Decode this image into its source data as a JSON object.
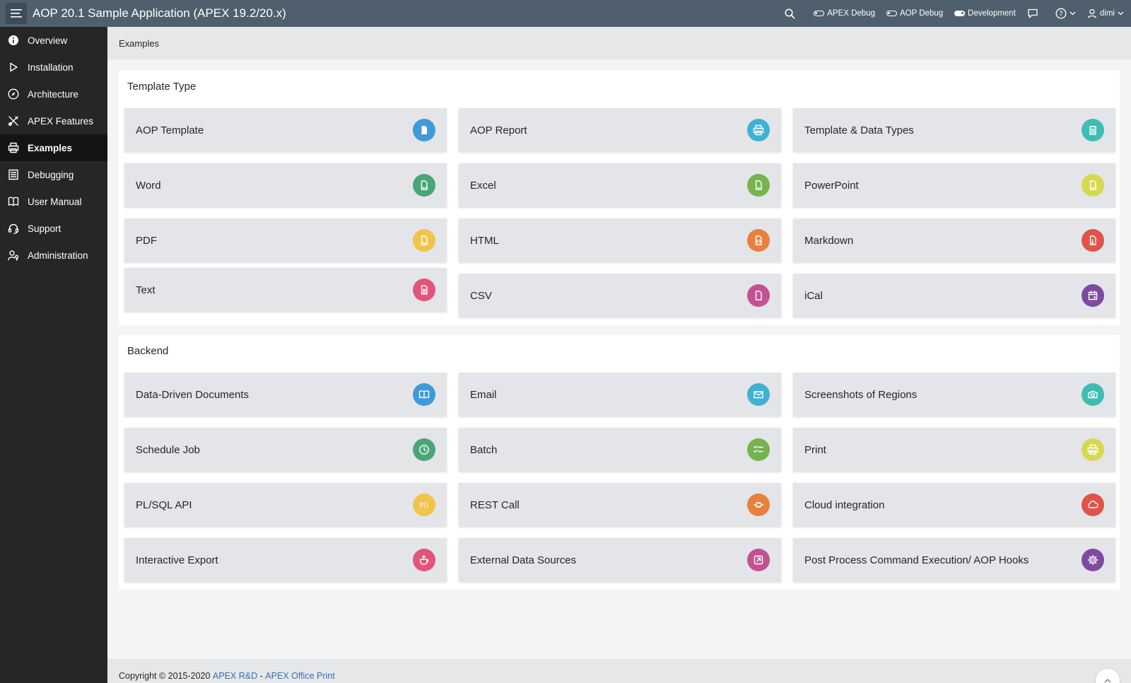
{
  "header": {
    "title": "AOP 20.1 Sample Application (APEX 19.2/20.x)",
    "apex_debug": "APEX Debug",
    "aop_debug": "AOP Debug",
    "development": "Development",
    "user": "dimi"
  },
  "sidebar": {
    "items": [
      {
        "label": "Overview",
        "icon": "info-icon"
      },
      {
        "label": "Installation",
        "icon": "play-icon"
      },
      {
        "label": "Architecture",
        "icon": "compass-icon"
      },
      {
        "label": "APEX Features",
        "icon": "tools-icon"
      },
      {
        "label": "Examples",
        "icon": "printer-icon",
        "active": true
      },
      {
        "label": "Debugging",
        "icon": "list-icon"
      },
      {
        "label": "User Manual",
        "icon": "book-icon"
      },
      {
        "label": "Support",
        "icon": "headset-icon"
      },
      {
        "label": "Administration",
        "icon": "user-key-icon"
      }
    ]
  },
  "breadcrumb": "Examples",
  "template_region": {
    "title": "Template Type",
    "cards": [
      {
        "label": "AOP Template",
        "icon": "file-icon",
        "color": "#3e9ad8"
      },
      {
        "label": "AOP Report",
        "icon": "printer-icon",
        "color": "#40b1d2"
      },
      {
        "label": "Template & Data Types",
        "icon": "clipboard-icon",
        "color": "#3fbdb3"
      },
      {
        "label": "Word",
        "icon": "doc-file-icon",
        "color": "#4aa678"
      },
      {
        "label": "Excel",
        "icon": "xls-file-icon",
        "color": "#76b34f"
      },
      {
        "label": "PowerPoint",
        "icon": "ppt-file-icon",
        "color": "#d5d94e"
      },
      {
        "label": "PDF",
        "icon": "pdf-file-icon",
        "color": "#f2c44c"
      },
      {
        "label": "HTML",
        "icon": "html-file-icon",
        "color": "#e8813e"
      },
      {
        "label": "Markdown",
        "icon": "markdown-file-icon",
        "color": "#e0534a"
      },
      {
        "label": "Text",
        "icon": "text-file-icon",
        "color": "#e2547a"
      },
      {
        "label": "CSV",
        "icon": "csv-file-icon",
        "color": "#c35293"
      },
      {
        "label": "iCal",
        "icon": "calendar-icon",
        "color": "#7d4aa0"
      }
    ]
  },
  "backend_region": {
    "title": "Backend",
    "cards": [
      {
        "label": "Data-Driven Documents",
        "icon": "book-open-icon",
        "color": "#3e9ad8"
      },
      {
        "label": "Email",
        "icon": "envelope-icon",
        "color": "#40b1d2"
      },
      {
        "label": "Screenshots of Regions",
        "icon": "camera-icon",
        "color": "#3fbdb3"
      },
      {
        "label": "Schedule Job",
        "icon": "clock-icon",
        "color": "#4aa678"
      },
      {
        "label": "Batch",
        "icon": "checklist-icon",
        "color": "#76b34f"
      },
      {
        "label": "Print",
        "icon": "printer-icon",
        "color": "#d5d94e"
      },
      {
        "label": "PL/SQL API",
        "icon": "plsql-icon",
        "color": "#f2c44c"
      },
      {
        "label": "REST Call",
        "icon": "plug-icon",
        "color": "#e8813e"
      },
      {
        "label": "Cloud integration",
        "icon": "cloud-icon",
        "color": "#e0534a"
      },
      {
        "label": "Interactive Export",
        "icon": "export-cup-icon",
        "color": "#e2547a"
      },
      {
        "label": "External Data Sources",
        "icon": "external-link-icon",
        "color": "#c35293"
      },
      {
        "label": "Post Process Command Execution/ AOP Hooks",
        "icon": "gear-icon",
        "color": "#7d4aa0"
      }
    ]
  },
  "footer": {
    "copyright": "Copyright © 2015-2020",
    "link1": "APEX R&D",
    "separator": "-",
    "link2": "APEX Office Print"
  }
}
